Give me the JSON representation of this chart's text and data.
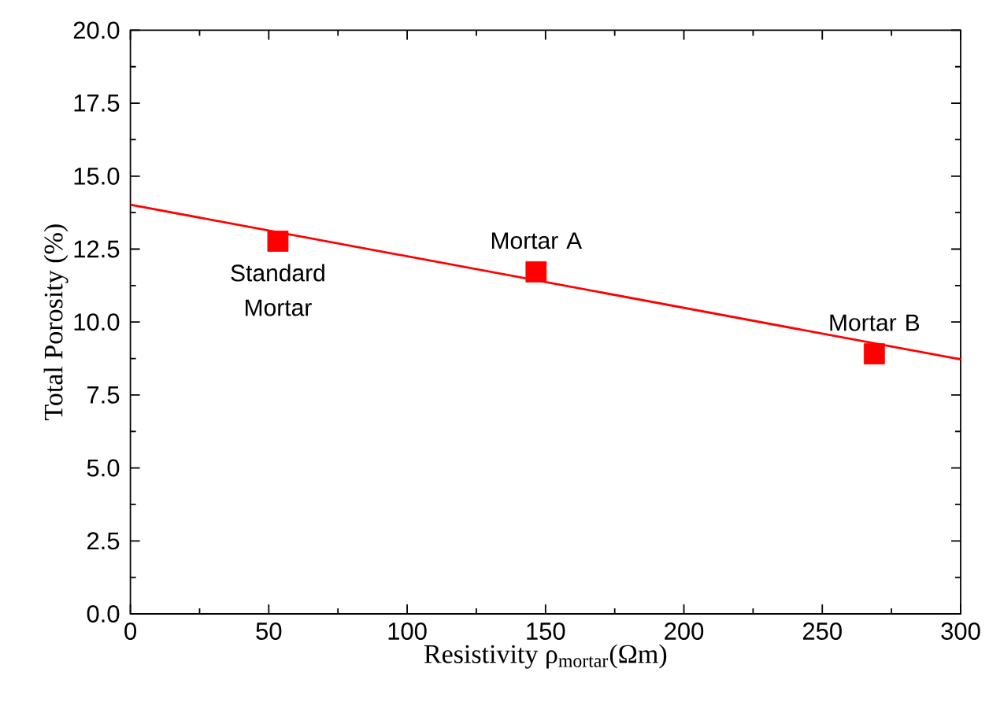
{
  "chart_data": {
    "type": "scatter",
    "xlabel": "Resistivity ρ$_{mortar}$(Ωm)",
    "ylabel": "Total Porosity (%)",
    "xlim": [
      0,
      300
    ],
    "ylim": [
      0,
      20
    ],
    "xticks": [
      0,
      50,
      100,
      150,
      200,
      250,
      300
    ],
    "yticks": [
      {
        "value": 0,
        "label": "0.0"
      },
      {
        "value": 2.5,
        "label": "2.5"
      },
      {
        "value": 5,
        "label": "5.0"
      },
      {
        "value": 7.5,
        "label": "7.5"
      },
      {
        "value": 10,
        "label": "10.0"
      },
      {
        "value": 12.5,
        "label": "12.5"
      },
      {
        "value": 15,
        "label": "15.0"
      },
      {
        "value": 17.5,
        "label": "17.5"
      },
      {
        "value": 20,
        "label": "20.0"
      }
    ],
    "grid": false,
    "series": [
      {
        "color": "#ff0000",
        "marker": "square",
        "x": [
          53.3,
          146.6,
          268.8
        ],
        "values": [
          12.77,
          11.72,
          8.91
        ]
      },
      {
        "type": "line",
        "color": "#ff0000",
        "marker": "none",
        "line_style": "solid",
        "x": [
          0,
          300
        ],
        "values": [
          14.02,
          8.72
        ]
      }
    ],
    "annotations": [
      {
        "text": "Standard Mortar",
        "x": 53.3,
        "y": 12.77
      },
      {
        "text": "Mortar A",
        "x": 146.6,
        "y": 11.72
      },
      {
        "text": "Mortar B",
        "x": 268.8,
        "y": 8.91
      }
    ]
  }
}
